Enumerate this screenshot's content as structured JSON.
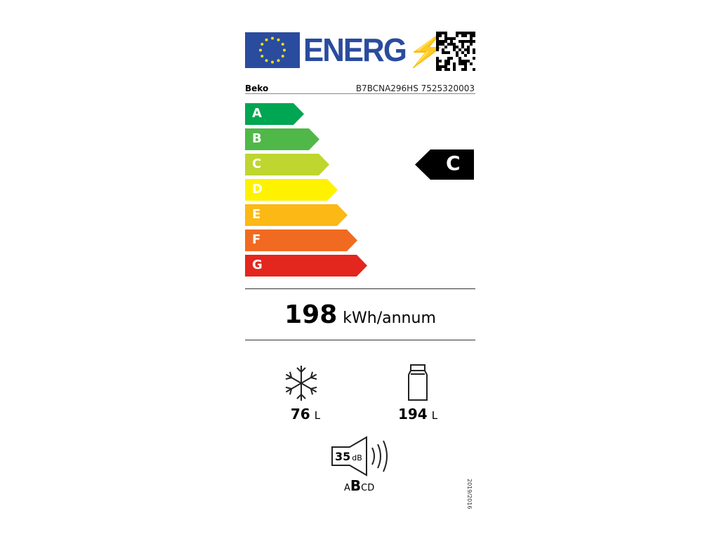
{
  "header": {
    "title": "ENERG",
    "brand": "Beko",
    "model": "B7BCNA296HS 7525320003"
  },
  "scale": [
    {
      "label": "A",
      "color": "#00a651"
    },
    {
      "label": "B",
      "color": "#50b848"
    },
    {
      "label": "C",
      "color": "#bed62f"
    },
    {
      "label": "D",
      "color": "#fff200"
    },
    {
      "label": "E",
      "color": "#fcb814"
    },
    {
      "label": "F",
      "color": "#f06b21"
    },
    {
      "label": "G",
      "color": "#e3261e"
    }
  ],
  "energy_class": "C",
  "consumption": {
    "value": "198",
    "unit": "kWh/annum"
  },
  "freezer": {
    "value": "76",
    "unit": "L",
    "icon": "snowflake-icon"
  },
  "fridge": {
    "value": "194",
    "unit": "L",
    "icon": "fridge-icon"
  },
  "noise": {
    "value": "35",
    "unit": "dB",
    "classes_before": "A",
    "class": "B",
    "classes_after": "CD",
    "icon": "speaker-icon"
  },
  "regulation": "2019/2016"
}
